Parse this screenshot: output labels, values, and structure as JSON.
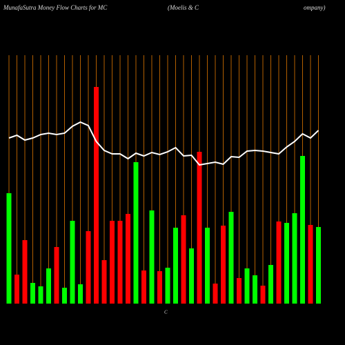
{
  "chart_data": {
    "type": "bar",
    "title": "MunafaSutra  Money Flow  Charts for MC",
    "company": [
      "(Moelis & C",
      "ompany)"
    ],
    "xlabel": "C",
    "categories": [
      null,
      null,
      null,
      null,
      null,
      null,
      null,
      null,
      null,
      null,
      null,
      null,
      null,
      null,
      null,
      null,
      null,
      null,
      null,
      null,
      null,
      null,
      null,
      null,
      null,
      null,
      null,
      null,
      null,
      null,
      null,
      null,
      null,
      null,
      null,
      null,
      null,
      null,
      null,
      null
    ],
    "values": [
      160,
      42,
      92,
      30,
      25,
      51,
      82,
      23,
      120,
      28,
      105,
      314,
      63,
      120,
      120,
      130,
      205,
      48,
      135,
      47,
      52,
      110,
      128,
      80,
      220,
      110,
      29,
      113,
      133,
      37,
      51,
      41,
      26,
      56,
      119,
      117,
      131,
      214,
      114,
      111
    ],
    "colors": [
      "#00ff00",
      "#ff0000",
      "#ff0000",
      "#00ff00",
      "#00ff00",
      "#00ff00",
      "#ff0000",
      "#00ff00",
      "#00ff00",
      "#00ff00",
      "#ff0000",
      "#ff0000",
      "#ff0000",
      "#ff0000",
      "#ff0000",
      "#ff0000",
      "#00ff00",
      "#ff0000",
      "#00ff00",
      "#ff0000",
      "#00ff00",
      "#00ff00",
      "#ff0000",
      "#00ff00",
      "#ff0000",
      "#00ff00",
      "#ff0000",
      "#ff0000",
      "#00ff00",
      "#ff0000",
      "#00ff00",
      "#00ff00",
      "#ff0000",
      "#00ff00",
      "#ff0000",
      "#00ff00",
      "#00ff00",
      "#00ff00",
      "#ff0000",
      "#00ff00"
    ],
    "line": {
      "color": "#ffffff",
      "values": [
        240,
        244,
        237,
        240,
        245,
        247,
        245,
        247,
        257,
        263,
        258,
        235,
        222,
        217,
        217,
        210,
        218,
        214,
        219,
        216,
        220,
        226,
        214,
        215,
        201,
        203,
        205,
        202,
        213,
        212,
        221,
        222,
        221,
        219,
        217,
        227,
        235,
        246,
        240,
        251
      ]
    },
    "ylim": [
      0,
      360
    ],
    "grid": true,
    "grid_color": "#b35f00"
  }
}
